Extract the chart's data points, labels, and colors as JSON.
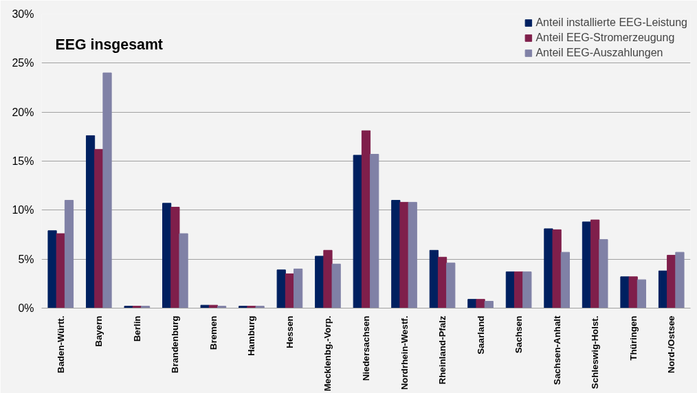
{
  "chart_data": {
    "type": "bar",
    "title": "EEG insgesamt",
    "categories": [
      "Baden-Württ.",
      "Bayern",
      "Berlin",
      "Brandenburg",
      "Bremen",
      "Hamburg",
      "Hessen",
      "Mecklenbg.-Vorp.",
      "Niedersachsen",
      "Nordrhein-Westf.",
      "Rheinland-Pfalz",
      "Saarland",
      "Sachsen",
      "Sachsen-Anhalt",
      "Schleswig-Holst.",
      "Thüringen",
      "Nord-/Ostsee"
    ],
    "series": [
      {
        "name": "Anteil installierte EEG-Leistung",
        "color": "#002060",
        "values": [
          7.9,
          17.6,
          0.2,
          10.7,
          0.3,
          0.2,
          3.9,
          5.3,
          15.6,
          11.0,
          5.9,
          0.9,
          3.7,
          8.1,
          8.8,
          3.2,
          3.8
        ]
      },
      {
        "name": "Anteil EEG-Stromerzeugung",
        "color": "#7f1f4b",
        "values": [
          7.6,
          16.2,
          0.2,
          10.3,
          0.3,
          0.2,
          3.5,
          5.9,
          18.1,
          10.8,
          5.2,
          0.9,
          3.7,
          8.0,
          9.0,
          3.2,
          5.4
        ]
      },
      {
        "name": "Anteil EEG-Auszahlungen",
        "color": "#8081a6",
        "values": [
          11.0,
          24.0,
          0.2,
          7.6,
          0.2,
          0.2,
          4.0,
          4.5,
          15.7,
          10.8,
          4.6,
          0.7,
          3.7,
          5.7,
          7.0,
          2.9,
          5.7
        ]
      }
    ],
    "ylim": [
      0,
      30
    ],
    "yticks": [
      {
        "value": 0,
        "label": "0%"
      },
      {
        "value": 5,
        "label": "5%"
      },
      {
        "value": 10,
        "label": "10%"
      },
      {
        "value": 15,
        "label": "15%"
      },
      {
        "value": 20,
        "label": "20%"
      },
      {
        "value": 25,
        "label": "25%"
      },
      {
        "value": 30,
        "label": "30%"
      }
    ],
    "grid": "y",
    "legend": "top right"
  }
}
